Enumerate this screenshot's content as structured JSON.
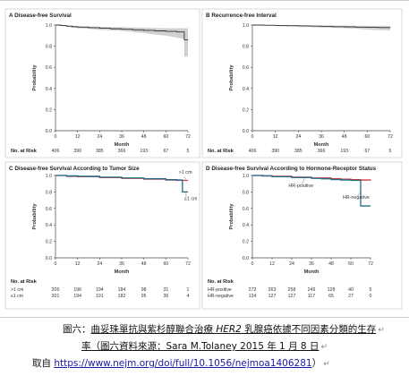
{
  "chart_data": [
    {
      "type": "line",
      "panel": "A",
      "title": "Disease-free Survival",
      "xlabel": "Month",
      "ylabel": "Probability",
      "xlim": [
        0,
        72
      ],
      "ylim": [
        0.0,
        1.0
      ],
      "xticks": [
        0,
        12,
        24,
        36,
        48,
        60,
        72
      ],
      "yticks": [
        0.0,
        0.2,
        0.4,
        0.6,
        0.8,
        1.0
      ],
      "series": [
        {
          "color": "#333333",
          "x": [
            0,
            3,
            6,
            9,
            12,
            18,
            24,
            30,
            36,
            42,
            48,
            54,
            60,
            66,
            70,
            70,
            72
          ],
          "y": [
            1.0,
            0.995,
            0.99,
            0.985,
            0.98,
            0.975,
            0.97,
            0.965,
            0.96,
            0.955,
            0.95,
            0.945,
            0.94,
            0.935,
            0.93,
            0.86,
            0.86
          ],
          "ci_low": [
            1.0,
            0.99,
            0.985,
            0.975,
            0.97,
            0.965,
            0.955,
            0.95,
            0.945,
            0.935,
            0.925,
            0.91,
            0.9,
            0.88,
            0.87,
            0.7,
            0.7
          ],
          "ci_high": [
            1.0,
            1.0,
            0.998,
            0.995,
            0.99,
            0.988,
            0.985,
            0.982,
            0.98,
            0.978,
            0.975,
            0.972,
            0.97,
            0.97,
            0.97,
            0.97,
            0.97
          ]
        }
      ],
      "risk_table": {
        "label": "No. at Risk",
        "rows": [
          {
            "name": "",
            "values": [
              406,
              390,
              385,
              366,
              193,
              67,
              5
            ]
          }
        ]
      }
    },
    {
      "type": "line",
      "panel": "B",
      "title": "Recurrence-free Interval",
      "xlabel": "Month",
      "ylabel": "Probability",
      "xlim": [
        0,
        72
      ],
      "ylim": [
        0.0,
        1.0
      ],
      "xticks": [
        0,
        12,
        24,
        36,
        48,
        60,
        72
      ],
      "yticks": [
        0.0,
        0.2,
        0.4,
        0.6,
        0.8,
        1.0
      ],
      "series": [
        {
          "color": "#333333",
          "x": [
            0,
            6,
            12,
            18,
            24,
            30,
            36,
            42,
            48,
            54,
            60,
            66,
            72
          ],
          "y": [
            1.0,
            0.998,
            0.996,
            0.994,
            0.992,
            0.99,
            0.988,
            0.985,
            0.983,
            0.98,
            0.978,
            0.976,
            0.975
          ],
          "ci_low": [
            1.0,
            0.995,
            0.99,
            0.987,
            0.984,
            0.981,
            0.978,
            0.974,
            0.97,
            0.965,
            0.958,
            0.952,
            0.95
          ],
          "ci_high": [
            1.0,
            1.0,
            1.0,
            1.0,
            0.999,
            0.998,
            0.997,
            0.996,
            0.995,
            0.994,
            0.993,
            0.993,
            0.993
          ]
        }
      ],
      "risk_table": {
        "label": "No. at Risk",
        "rows": [
          {
            "name": "",
            "values": [
              406,
              390,
              385,
              366,
              193,
              67,
              5
            ]
          }
        ]
      }
    },
    {
      "type": "line",
      "panel": "C",
      "title": "Disease-free Survival According to Tumor Size",
      "xlabel": "Month",
      "ylabel": "Probability",
      "xlim": [
        0,
        72
      ],
      "ylim": [
        0.0,
        1.0
      ],
      "xticks": [
        0,
        12,
        24,
        36,
        48,
        60,
        72
      ],
      "yticks": [
        0.0,
        0.2,
        0.4,
        0.6,
        0.8,
        1.0
      ],
      "series": [
        {
          "name": ">1 cm",
          "color": "#d23a3a",
          "x": [
            0,
            6,
            12,
            24,
            36,
            48,
            60,
            66,
            70,
            72
          ],
          "y": [
            1.0,
            0.99,
            0.985,
            0.975,
            0.965,
            0.955,
            0.945,
            0.94,
            0.94,
            0.94
          ]
        },
        {
          "name": "≤1 cm",
          "color": "#1f6f8b",
          "x": [
            0,
            6,
            12,
            24,
            36,
            48,
            60,
            66,
            69,
            69,
            72
          ],
          "y": [
            1.0,
            0.995,
            0.99,
            0.98,
            0.97,
            0.96,
            0.95,
            0.945,
            0.945,
            0.8,
            0.8
          ]
        }
      ],
      "risk_table": {
        "label": "No. at Risk",
        "rows": [
          {
            "name": ">1 cm",
            "values": [
              205,
              196,
              194,
              184,
              98,
              31,
              1
            ]
          },
          {
            "name": "≤1 cm",
            "values": [
              201,
              194,
              191,
              182,
              95,
              36,
              4
            ]
          }
        ]
      }
    },
    {
      "type": "line",
      "panel": "D",
      "title": "Disease-free Survival According to Hormone-Receptor Status",
      "xlabel": "Month",
      "ylabel": "Probability",
      "xlim": [
        0,
        72
      ],
      "ylim": [
        0.0,
        1.0
      ],
      "xticks": [
        0,
        12,
        24,
        36,
        48,
        60,
        72
      ],
      "yticks": [
        0.0,
        0.2,
        0.4,
        0.6,
        0.8,
        1.0
      ],
      "series": [
        {
          "name": "HR-positive",
          "color": "#d23a3a",
          "x": [
            0,
            6,
            12,
            24,
            36,
            48,
            54,
            60,
            66,
            72
          ],
          "y": [
            1.0,
            0.995,
            0.99,
            0.98,
            0.97,
            0.96,
            0.955,
            0.95,
            0.945,
            0.94
          ]
        },
        {
          "name": "HR-negative",
          "color": "#1f6f8b",
          "x": [
            0,
            6,
            12,
            24,
            36,
            42,
            48,
            54,
            60,
            66,
            66,
            72
          ],
          "y": [
            1.0,
            0.995,
            0.985,
            0.975,
            0.965,
            0.96,
            0.95,
            0.945,
            0.94,
            0.935,
            0.63,
            0.63
          ]
        }
      ],
      "risk_table": {
        "label": "No. at Risk",
        "rows": [
          {
            "name": "HR-positive",
            "values": [
              272,
              263,
              258,
              249,
              128,
              40,
              5
            ]
          },
          {
            "name": "HR-negative",
            "values": [
              134,
              127,
              127,
              117,
              65,
              27,
              0
            ]
          }
        ]
      }
    }
  ],
  "caption": {
    "prefix": "圖六：",
    "title_part1": "曲妥珠單抗與紫杉醇聯合治療 ",
    "her2": "HER2",
    "title_part2": " 乳腺癌依據不同因素分類的生存",
    "line2": "率（圖六資料來源：Sara M.Tolaney 2015 年 1 月 8 日",
    "line3_prefix": "取自 ",
    "url": "https://www.nejm.org/doi/full/10.1056/nejmoa1406281",
    "line3_suffix": "）"
  }
}
